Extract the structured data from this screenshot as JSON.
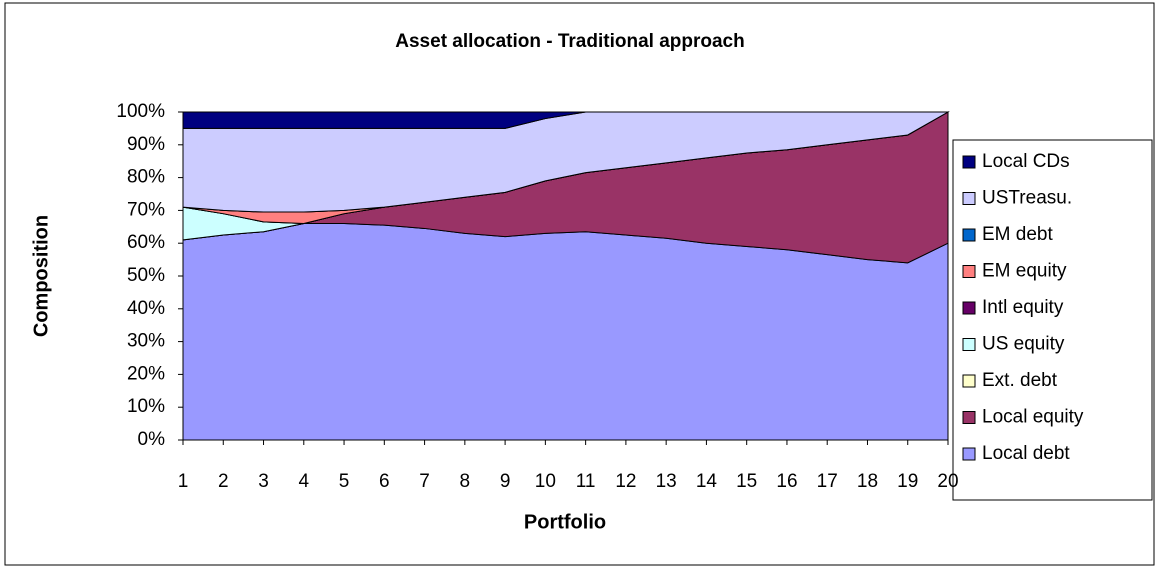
{
  "chart_data": {
    "type": "stacked_area",
    "title": "Asset allocation - Traditional approach",
    "x_label": "Portfolio",
    "y_label": "Composition",
    "x": [
      1,
      2,
      3,
      4,
      5,
      6,
      7,
      8,
      9,
      10,
      11,
      12,
      13,
      14,
      15,
      16,
      17,
      18,
      19,
      20
    ],
    "xlim": [
      1,
      20
    ],
    "xticks": [
      1,
      2,
      3,
      4,
      5,
      6,
      7,
      8,
      9,
      10,
      11,
      12,
      13,
      14,
      15,
      16,
      17,
      18,
      19,
      20
    ],
    "ylim": [
      0,
      100
    ],
    "yticks": [
      {
        "value": 0,
        "label": "0%"
      },
      {
        "value": 10,
        "label": "10%"
      },
      {
        "value": 20,
        "label": "20%"
      },
      {
        "value": 30,
        "label": "30%"
      },
      {
        "value": 40,
        "label": "40%"
      },
      {
        "value": 50,
        "label": "50%"
      },
      {
        "value": 60,
        "label": "60%"
      },
      {
        "value": 70,
        "label": "70%"
      },
      {
        "value": 80,
        "label": "80%"
      },
      {
        "value": 90,
        "label": "90%"
      },
      {
        "value": 100,
        "label": "100%"
      }
    ],
    "legend": "right",
    "series": [
      {
        "name": "Local debt",
        "color": "#9999ff",
        "values": [
          61,
          62.5,
          63.5,
          66,
          66,
          65.5,
          64.5,
          63,
          62,
          63,
          63.5,
          62.5,
          61.5,
          60,
          59,
          58,
          56.5,
          55,
          54,
          60
        ]
      },
      {
        "name": "Local equity",
        "color": "#993366",
        "values": [
          0,
          0,
          0,
          0,
          3,
          5.5,
          8,
          11,
          13.5,
          16,
          18,
          20.5,
          23,
          26,
          28.5,
          30.5,
          33.5,
          36.5,
          39,
          40
        ]
      },
      {
        "name": "Ext. debt",
        "color": "#ffffcc",
        "values": [
          0,
          0,
          0,
          0,
          0,
          0,
          0,
          0,
          0,
          0,
          0,
          0,
          0,
          0,
          0,
          0,
          0,
          0,
          0,
          0
        ]
      },
      {
        "name": "US equity",
        "color": "#ccffff",
        "values": [
          10,
          6.5,
          3,
          0,
          0,
          0,
          0,
          0,
          0,
          0,
          0,
          0,
          0,
          0,
          0,
          0,
          0,
          0,
          0,
          0
        ]
      },
      {
        "name": "Intl equity",
        "color": "#660066",
        "values": [
          0,
          0,
          0,
          0,
          0,
          0,
          0,
          0,
          0,
          0,
          0,
          0,
          0,
          0,
          0,
          0,
          0,
          0,
          0,
          0
        ]
      },
      {
        "name": "EM equity",
        "color": "#ff8080",
        "values": [
          0,
          1,
          3,
          3.5,
          1,
          0,
          0,
          0,
          0,
          0,
          0,
          0,
          0,
          0,
          0,
          0,
          0,
          0,
          0,
          0
        ]
      },
      {
        "name": "EM debt",
        "color": "#0066cc",
        "values": [
          0,
          0,
          0,
          0,
          0,
          0,
          0,
          0,
          0,
          0,
          0,
          0,
          0,
          0,
          0,
          0,
          0,
          0,
          0,
          0
        ]
      },
      {
        "name": "USTreasu.",
        "color": "#ccccff",
        "values": [
          24,
          25,
          25.5,
          25.5,
          25,
          24,
          22.5,
          21,
          19.5,
          19,
          18.5,
          17,
          15.5,
          14,
          12.5,
          11.5,
          10,
          8.5,
          7,
          0
        ]
      },
      {
        "name": "Local CDs",
        "color": "#000080",
        "values": [
          5,
          5,
          5,
          5,
          5,
          5,
          5,
          5,
          5,
          2,
          0,
          0,
          0,
          0,
          0,
          0,
          0,
          0,
          0,
          0
        ]
      }
    ]
  }
}
